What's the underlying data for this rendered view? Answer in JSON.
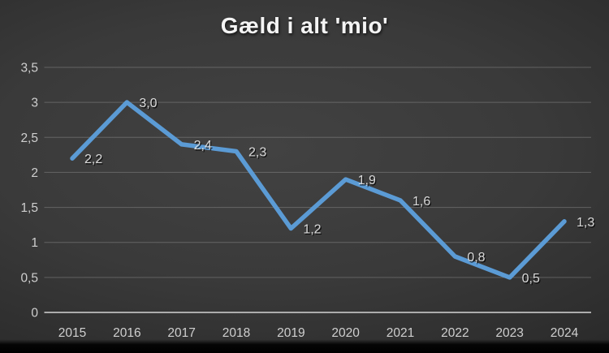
{
  "chart_data": {
    "type": "line",
    "title": "Gæld i alt 'mio'",
    "categories": [
      "2015",
      "2016",
      "2017",
      "2018",
      "2019",
      "2020",
      "2021",
      "2022",
      "2023",
      "2024"
    ],
    "series": [
      {
        "values": [
          2.2,
          3.0,
          2.4,
          2.3,
          1.2,
          1.9,
          1.6,
          0.8,
          0.5,
          1.3
        ],
        "data_labels": [
          "2,2",
          "3,0",
          "2,4",
          "2,3",
          "1,2",
          "1,9",
          "1,6",
          "0,8",
          "0,5",
          "1,3"
        ]
      }
    ],
    "xlabel": "",
    "ylabel": "",
    "ylim": [
      0,
      3.5
    ],
    "ytick_step": 0.5,
    "ytick_labels": [
      "0",
      "0,5",
      "1",
      "1,5",
      "2",
      "2,5",
      "3",
      "3,5"
    ],
    "grid": true,
    "legend_position": "none",
    "colors": {
      "line": "#5B9BD5",
      "data_label": "#d9d9d9",
      "tick_label": "#cfcfcf",
      "gridline": "#9e9e9e",
      "axis_line": "#b3b3b3",
      "title": "#f4f4f4"
    }
  }
}
